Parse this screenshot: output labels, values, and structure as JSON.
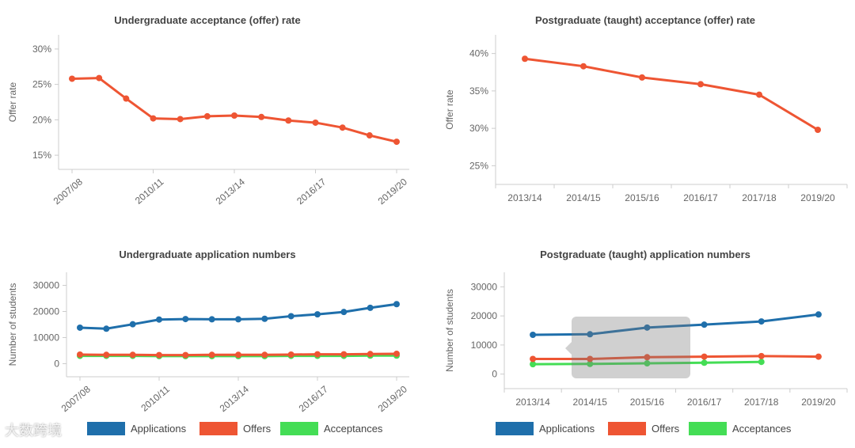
{
  "colors": {
    "applications": "#1f6fab",
    "offers": "#ee5533",
    "acceptances": "#44dd55",
    "rate": "#ee5533"
  },
  "watermark": "大数跨境",
  "chart_data": [
    {
      "type": "line",
      "title": "Undergraduate acceptance (offer) rate",
      "xlabel": "",
      "ylabel": "Offer rate",
      "x": [
        "2007/08",
        "2008/09",
        "2009/10",
        "2010/11",
        "2011/12",
        "2012/13",
        "2013/14",
        "2014/15",
        "2015/16",
        "2016/17",
        "2017/18",
        "2018/19",
        "2019/20"
      ],
      "tick_labels": [
        "2007/08",
        "2010/11",
        "2013/14",
        "2016/17",
        "2019/20"
      ],
      "yticks": [
        "15%",
        "20%",
        "25%",
        "30%"
      ],
      "ylim": [
        13,
        32
      ],
      "series": [
        {
          "values": [
            25.8,
            25.9,
            23.0,
            20.2,
            20.1,
            20.5,
            20.6,
            20.4,
            19.9,
            19.6,
            18.9,
            17.8,
            16.9
          ]
        }
      ]
    },
    {
      "type": "line",
      "title": "Postgraduate (taught) acceptance (offer) rate",
      "xlabel": "",
      "ylabel": "Offer rate",
      "x": [
        "2013/14",
        "2014/15",
        "2015/16",
        "2016/17",
        "2017/18",
        "2019/20"
      ],
      "tick_labels": [
        "2013/14",
        "2014/15",
        "2015/16",
        "2016/17",
        "2017/18",
        "2019/20"
      ],
      "yticks": [
        "25%",
        "30%",
        "35%",
        "40%"
      ],
      "ylim": [
        22.5,
        42.5
      ],
      "series": [
        {
          "values": [
            39.3,
            38.3,
            36.8,
            35.9,
            34.5,
            29.8
          ]
        }
      ]
    },
    {
      "type": "line",
      "title": "Undergraduate application numbers",
      "xlabel": "",
      "ylabel": "Number of students",
      "x": [
        "2007/08",
        "2008/09",
        "2009/10",
        "2010/11",
        "2011/12",
        "2012/13",
        "2013/14",
        "2014/15",
        "2015/16",
        "2016/17",
        "2017/18",
        "2018/19",
        "2019/20"
      ],
      "tick_labels": [
        "2007/08",
        "2010/11",
        "2013/14",
        "2016/17",
        "2019/20"
      ],
      "yticks": [
        "0",
        "10000",
        "20000",
        "30000"
      ],
      "ylim": [
        -5000,
        35000
      ],
      "legend": "bottom",
      "series": [
        {
          "name": "Applications",
          "values": [
            13800,
            13400,
            15100,
            16900,
            17100,
            17000,
            17000,
            17200,
            18200,
            18900,
            19800,
            21400,
            22800
          ]
        },
        {
          "name": "Offers",
          "values": [
            3500,
            3400,
            3400,
            3300,
            3300,
            3400,
            3400,
            3400,
            3500,
            3600,
            3600,
            3700,
            3800
          ]
        },
        {
          "name": "Acceptances",
          "values": [
            3000,
            3000,
            3000,
            2900,
            2900,
            2900,
            2900,
            2900,
            3000,
            3000,
            3000,
            3100,
            3100
          ]
        }
      ]
    },
    {
      "type": "line",
      "title": "Postgraduate (taught) application numbers",
      "xlabel": "",
      "ylabel": "Number of students",
      "x": [
        "2013/14",
        "2014/15",
        "2015/16",
        "2016/17",
        "2017/18",
        "2019/20"
      ],
      "tick_labels": [
        "2013/14",
        "2014/15",
        "2015/16",
        "2016/17",
        "2017/18",
        "2019/20"
      ],
      "yticks": [
        "0",
        "10000",
        "20000",
        "30000"
      ],
      "ylim": [
        -5000,
        35000
      ],
      "legend": "bottom",
      "tooltip_visible": true,
      "series": [
        {
          "name": "Applications",
          "values": [
            13500,
            13700,
            16000,
            17000,
            18100,
            20500
          ]
        },
        {
          "name": "Offers",
          "values": [
            5200,
            5200,
            5800,
            6000,
            6200,
            6000
          ]
        },
        {
          "name": "Acceptances",
          "values": [
            3400,
            3500,
            3700,
            3900,
            4200,
            null
          ]
        }
      ]
    }
  ]
}
